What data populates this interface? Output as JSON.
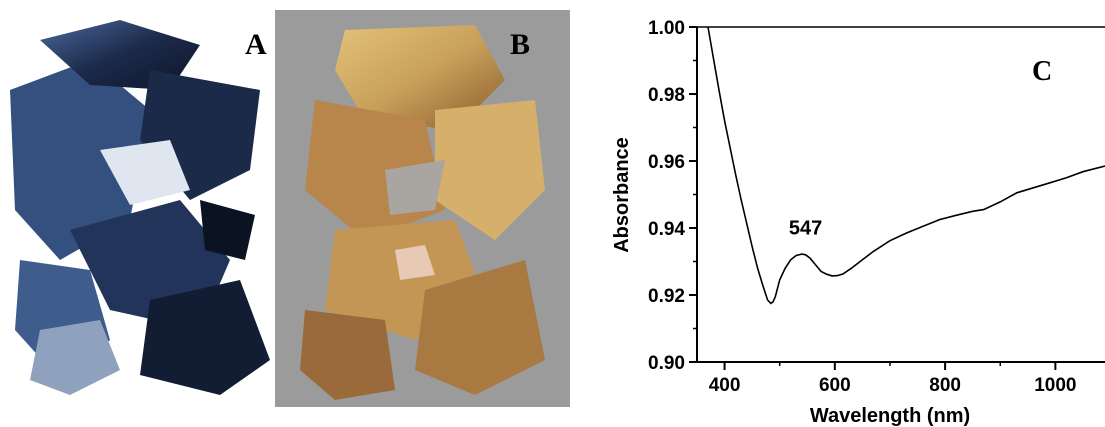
{
  "panels": {
    "a": {
      "letter": "A",
      "image_desc": "photo-dark-blue-flakes"
    },
    "b": {
      "letter": "B",
      "image_desc": "photo-gold-flakes"
    },
    "c": {
      "letter": "C"
    }
  },
  "colors": {
    "line": "#000000",
    "flake_dark": "#1c2a4a",
    "flake_blue": "#34507f",
    "flake_gold": "#c8a05a",
    "flake_bronze": "#9a6a3a",
    "glass_gray": "#9b9b9b"
  },
  "chart_data": {
    "type": "line",
    "xlabel": "Wavelength (nm)",
    "ylabel": "Absorbance",
    "xlim": [
      350,
      1090
    ],
    "ylim": [
      0.9,
      1.0
    ],
    "xticks": [
      400,
      600,
      800,
      1000
    ],
    "yticks": [
      0.9,
      0.92,
      0.94,
      0.96,
      0.98,
      1.0
    ],
    "xtick_labels": [
      "400",
      "600",
      "800",
      "1000"
    ],
    "ytick_labels": [
      "0.90",
      "0.92",
      "0.94",
      "0.96",
      "0.98",
      "1.00"
    ],
    "annotation": {
      "text": "547",
      "x": 547,
      "y": 0.938
    },
    "series": [
      {
        "x": [
          370,
          380,
          390,
          400,
          410,
          420,
          430,
          440,
          450,
          460,
          470,
          478,
          484,
          488,
          492,
          496,
          500,
          510,
          520,
          530,
          540,
          547,
          555,
          565,
          575,
          585,
          595,
          605,
          615,
          630,
          650,
          670,
          700,
          730,
          760,
          790,
          820,
          850,
          870,
          900,
          930,
          960,
          990,
          1020,
          1050,
          1090
        ],
        "y": [
          1.0,
          0.9905,
          0.981,
          0.972,
          0.964,
          0.956,
          0.9485,
          0.9415,
          0.9345,
          0.928,
          0.9225,
          0.9185,
          0.9175,
          0.918,
          0.9195,
          0.922,
          0.9245,
          0.928,
          0.9305,
          0.9318,
          0.9322,
          0.932,
          0.931,
          0.929,
          0.927,
          0.9262,
          0.9257,
          0.9258,
          0.9263,
          0.928,
          0.9305,
          0.933,
          0.9362,
          0.9385,
          0.9405,
          0.9425,
          0.9438,
          0.945,
          0.9455,
          0.9478,
          0.9505,
          0.952,
          0.9535,
          0.955,
          0.9568,
          0.9585
        ]
      }
    ]
  }
}
